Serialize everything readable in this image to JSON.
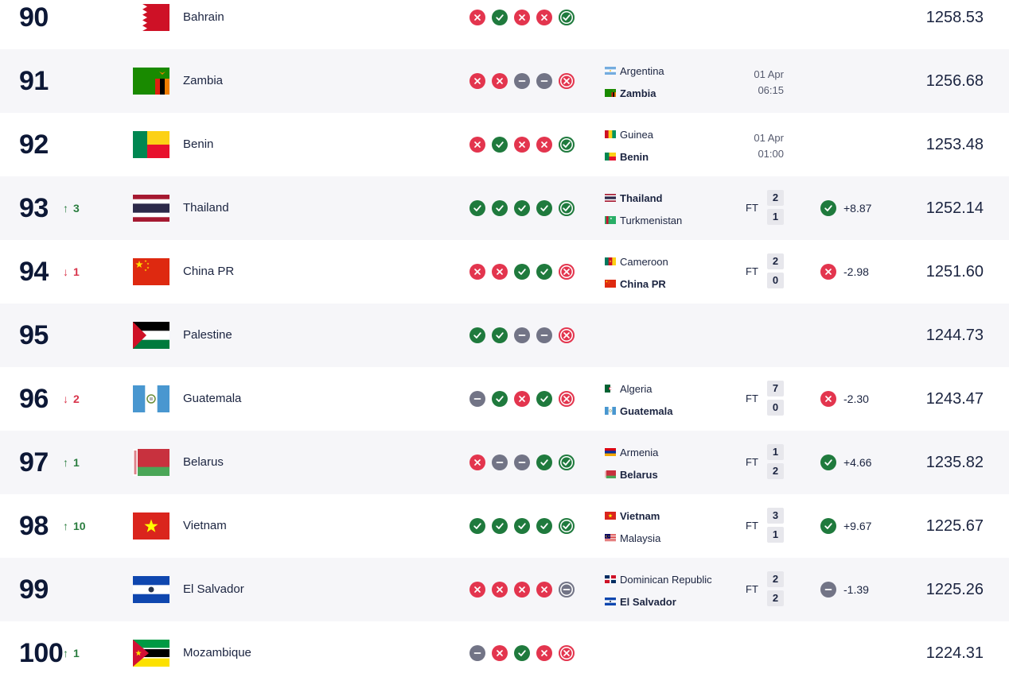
{
  "colors": {
    "win": "#1f7a3d",
    "loss": "#e3354e",
    "draw": "#727486",
    "up": "#2a7d3f",
    "down": "#d8334a"
  },
  "rows": [
    {
      "rank": "90",
      "move": null,
      "team": "Bahrain",
      "flag": "bahrain",
      "form": [
        "L",
        "W",
        "L",
        "L",
        "W"
      ],
      "points": "1258.53",
      "match": null
    },
    {
      "rank": "91",
      "move": null,
      "team": "Zambia",
      "flag": "zambia",
      "form": [
        "L",
        "L",
        "D",
        "D",
        "L"
      ],
      "points": "1256.68",
      "match": {
        "home": "Argentina",
        "home_flag": "argentina",
        "away": "Zambia",
        "away_flag": "zambia",
        "bold": "away",
        "date": "01 Apr",
        "time": "06:15"
      }
    },
    {
      "rank": "92",
      "move": null,
      "team": "Benin",
      "flag": "benin",
      "form": [
        "L",
        "W",
        "L",
        "L",
        "W"
      ],
      "points": "1253.48",
      "match": {
        "home": "Guinea",
        "home_flag": "guinea",
        "away": "Benin",
        "away_flag": "benin",
        "bold": "away",
        "date": "01 Apr",
        "time": "01:00"
      }
    },
    {
      "rank": "93",
      "move": {
        "dir": "up",
        "arrow": "↑",
        "value": "3"
      },
      "team": "Thailand",
      "flag": "thailand",
      "form": [
        "W",
        "W",
        "W",
        "W",
        "W"
      ],
      "points": "1252.14",
      "match": {
        "home": "Thailand",
        "home_flag": "thailand",
        "away": "Turkmenistan",
        "away_flag": "turkmenistan",
        "bold": "home",
        "status": "FT",
        "home_score": "2",
        "away_score": "1",
        "result": "W",
        "change": "+8.87"
      }
    },
    {
      "rank": "94",
      "move": {
        "dir": "down",
        "arrow": "↓",
        "value": "1"
      },
      "team": "China PR",
      "flag": "china",
      "form": [
        "L",
        "L",
        "W",
        "W",
        "L"
      ],
      "points": "1251.60",
      "match": {
        "home": "Cameroon",
        "home_flag": "cameroon",
        "away": "China PR",
        "away_flag": "china",
        "bold": "away",
        "status": "FT",
        "home_score": "2",
        "away_score": "0",
        "result": "L",
        "change": "-2.98"
      }
    },
    {
      "rank": "95",
      "move": null,
      "team": "Palestine",
      "flag": "palestine",
      "form": [
        "W",
        "W",
        "D",
        "D",
        "L"
      ],
      "points": "1244.73",
      "match": null
    },
    {
      "rank": "96",
      "move": {
        "dir": "down",
        "arrow": "↓",
        "value": "2"
      },
      "team": "Guatemala",
      "flag": "guatemala",
      "form": [
        "D",
        "W",
        "L",
        "W",
        "L"
      ],
      "points": "1243.47",
      "match": {
        "home": "Algeria",
        "home_flag": "algeria",
        "away": "Guatemala",
        "away_flag": "guatemala",
        "bold": "away",
        "status": "FT",
        "home_score": "7",
        "away_score": "0",
        "result": "L",
        "change": "-2.30"
      }
    },
    {
      "rank": "97",
      "move": {
        "dir": "up",
        "arrow": "↑",
        "value": "1"
      },
      "team": "Belarus",
      "flag": "belarus",
      "form": [
        "L",
        "D",
        "D",
        "W",
        "W"
      ],
      "points": "1235.82",
      "match": {
        "home": "Armenia",
        "home_flag": "armenia",
        "away": "Belarus",
        "away_flag": "belarus",
        "bold": "away",
        "status": "FT",
        "home_score": "1",
        "away_score": "2",
        "result": "W",
        "change": "+4.66"
      }
    },
    {
      "rank": "98",
      "move": {
        "dir": "up",
        "arrow": "↑",
        "value": "10"
      },
      "team": "Vietnam",
      "flag": "vietnam",
      "form": [
        "W",
        "W",
        "W",
        "W",
        "W"
      ],
      "points": "1225.67",
      "match": {
        "home": "Vietnam",
        "home_flag": "vietnam",
        "away": "Malaysia",
        "away_flag": "malaysia",
        "bold": "home",
        "status": "FT",
        "home_score": "3",
        "away_score": "1",
        "result": "W",
        "change": "+9.67"
      }
    },
    {
      "rank": "99",
      "move": null,
      "team": "El Salvador",
      "flag": "elsalvador",
      "form": [
        "L",
        "L",
        "L",
        "L",
        "D"
      ],
      "points": "1225.26",
      "match": {
        "home": "Dominican Republic",
        "home_flag": "dominican",
        "away": "El Salvador",
        "away_flag": "elsalvador",
        "bold": "away",
        "status": "FT",
        "home_score": "2",
        "away_score": "2",
        "result": "D",
        "change": "-1.39"
      }
    },
    {
      "rank": "100",
      "move": {
        "dir": "up",
        "arrow": "↑",
        "value": "1"
      },
      "team": "Mozambique",
      "flag": "mozambique",
      "form": [
        "D",
        "L",
        "W",
        "L",
        "L"
      ],
      "points": "1224.31",
      "match": null
    }
  ]
}
